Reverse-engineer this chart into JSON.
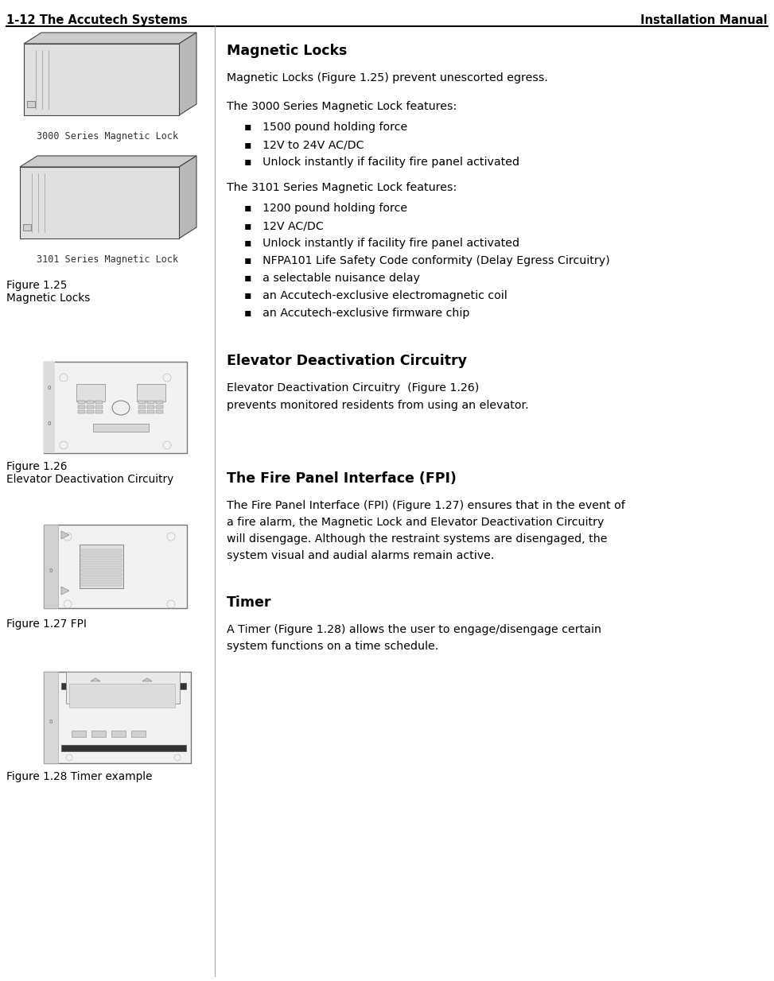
{
  "header_left": "1-12 The Accutech Systems",
  "header_right": "Installation Manual",
  "header_font_size": 10.5,
  "divider_color": "#000000",
  "bg_color": "#ffffff",
  "text_color": "#000000",
  "body_font_size": 10.2,
  "caption_font_size": 9.8,
  "section_title_font_size": 12.5,
  "bullet_char": "▪",
  "fig125_caption": [
    "Figure 1.25",
    "Magnetic Locks"
  ],
  "fig126_caption": [
    "Figure 1.26",
    "Elevator Deactivation Circuitry"
  ],
  "fig127_caption": "Figure 1.27 FPI",
  "fig128_caption": "Figure 1.28 Timer example",
  "label_3000": "3000 Series Magnetic Lock",
  "label_3101": "3101 Series Magnetic Lock",
  "mag_lock_section_title": "Magnetic Locks",
  "mag_lock_para1": "Magnetic Locks (Figure 1.25) prevent unescorted egress.",
  "mag_lock_para2": "The 3000 Series Magnetic Lock features:",
  "bullets_3000": [
    "1500 pound holding force",
    "12V to 24V AC/DC",
    "Unlock instantly if facility fire panel activated"
  ],
  "mag_lock_para3": "The 3101 Series Magnetic Lock features:",
  "bullets_3101": [
    "1200 pound holding force",
    "12V AC/DC",
    "Unlock instantly if facility fire panel activated",
    "NFPA101 Life Safety Code conformity (Delay Egress Circuitry)",
    "a selectable nuisance delay",
    "an Accutech-exclusive electromagnetic coil",
    "an Accutech-exclusive firmware chip"
  ],
  "elev_section_title": "Elevator Deactivation Circuitry",
  "elev_para1": "Elevator Deactivation Circuitry  (Figure 1.26)",
  "elev_para2": "prevents monitored residents from using an elevator.",
  "fpi_section_title": "The Fire Panel Interface (FPI)",
  "fpi_para1_lines": [
    "The Fire Panel Interface (FPI) (Figure 1.27) ensures that in the event of",
    "a fire alarm, the Magnetic Lock and Elevator Deactivation Circuitry",
    "will disengage. Although the restraint systems are disengaged, the",
    "system visual and audial alarms remain active."
  ],
  "timer_section_title": "Timer",
  "timer_para1_lines": [
    "A Timer (Figure 1.28) allows the user to engage/disengage certain",
    "system functions on a time schedule."
  ]
}
